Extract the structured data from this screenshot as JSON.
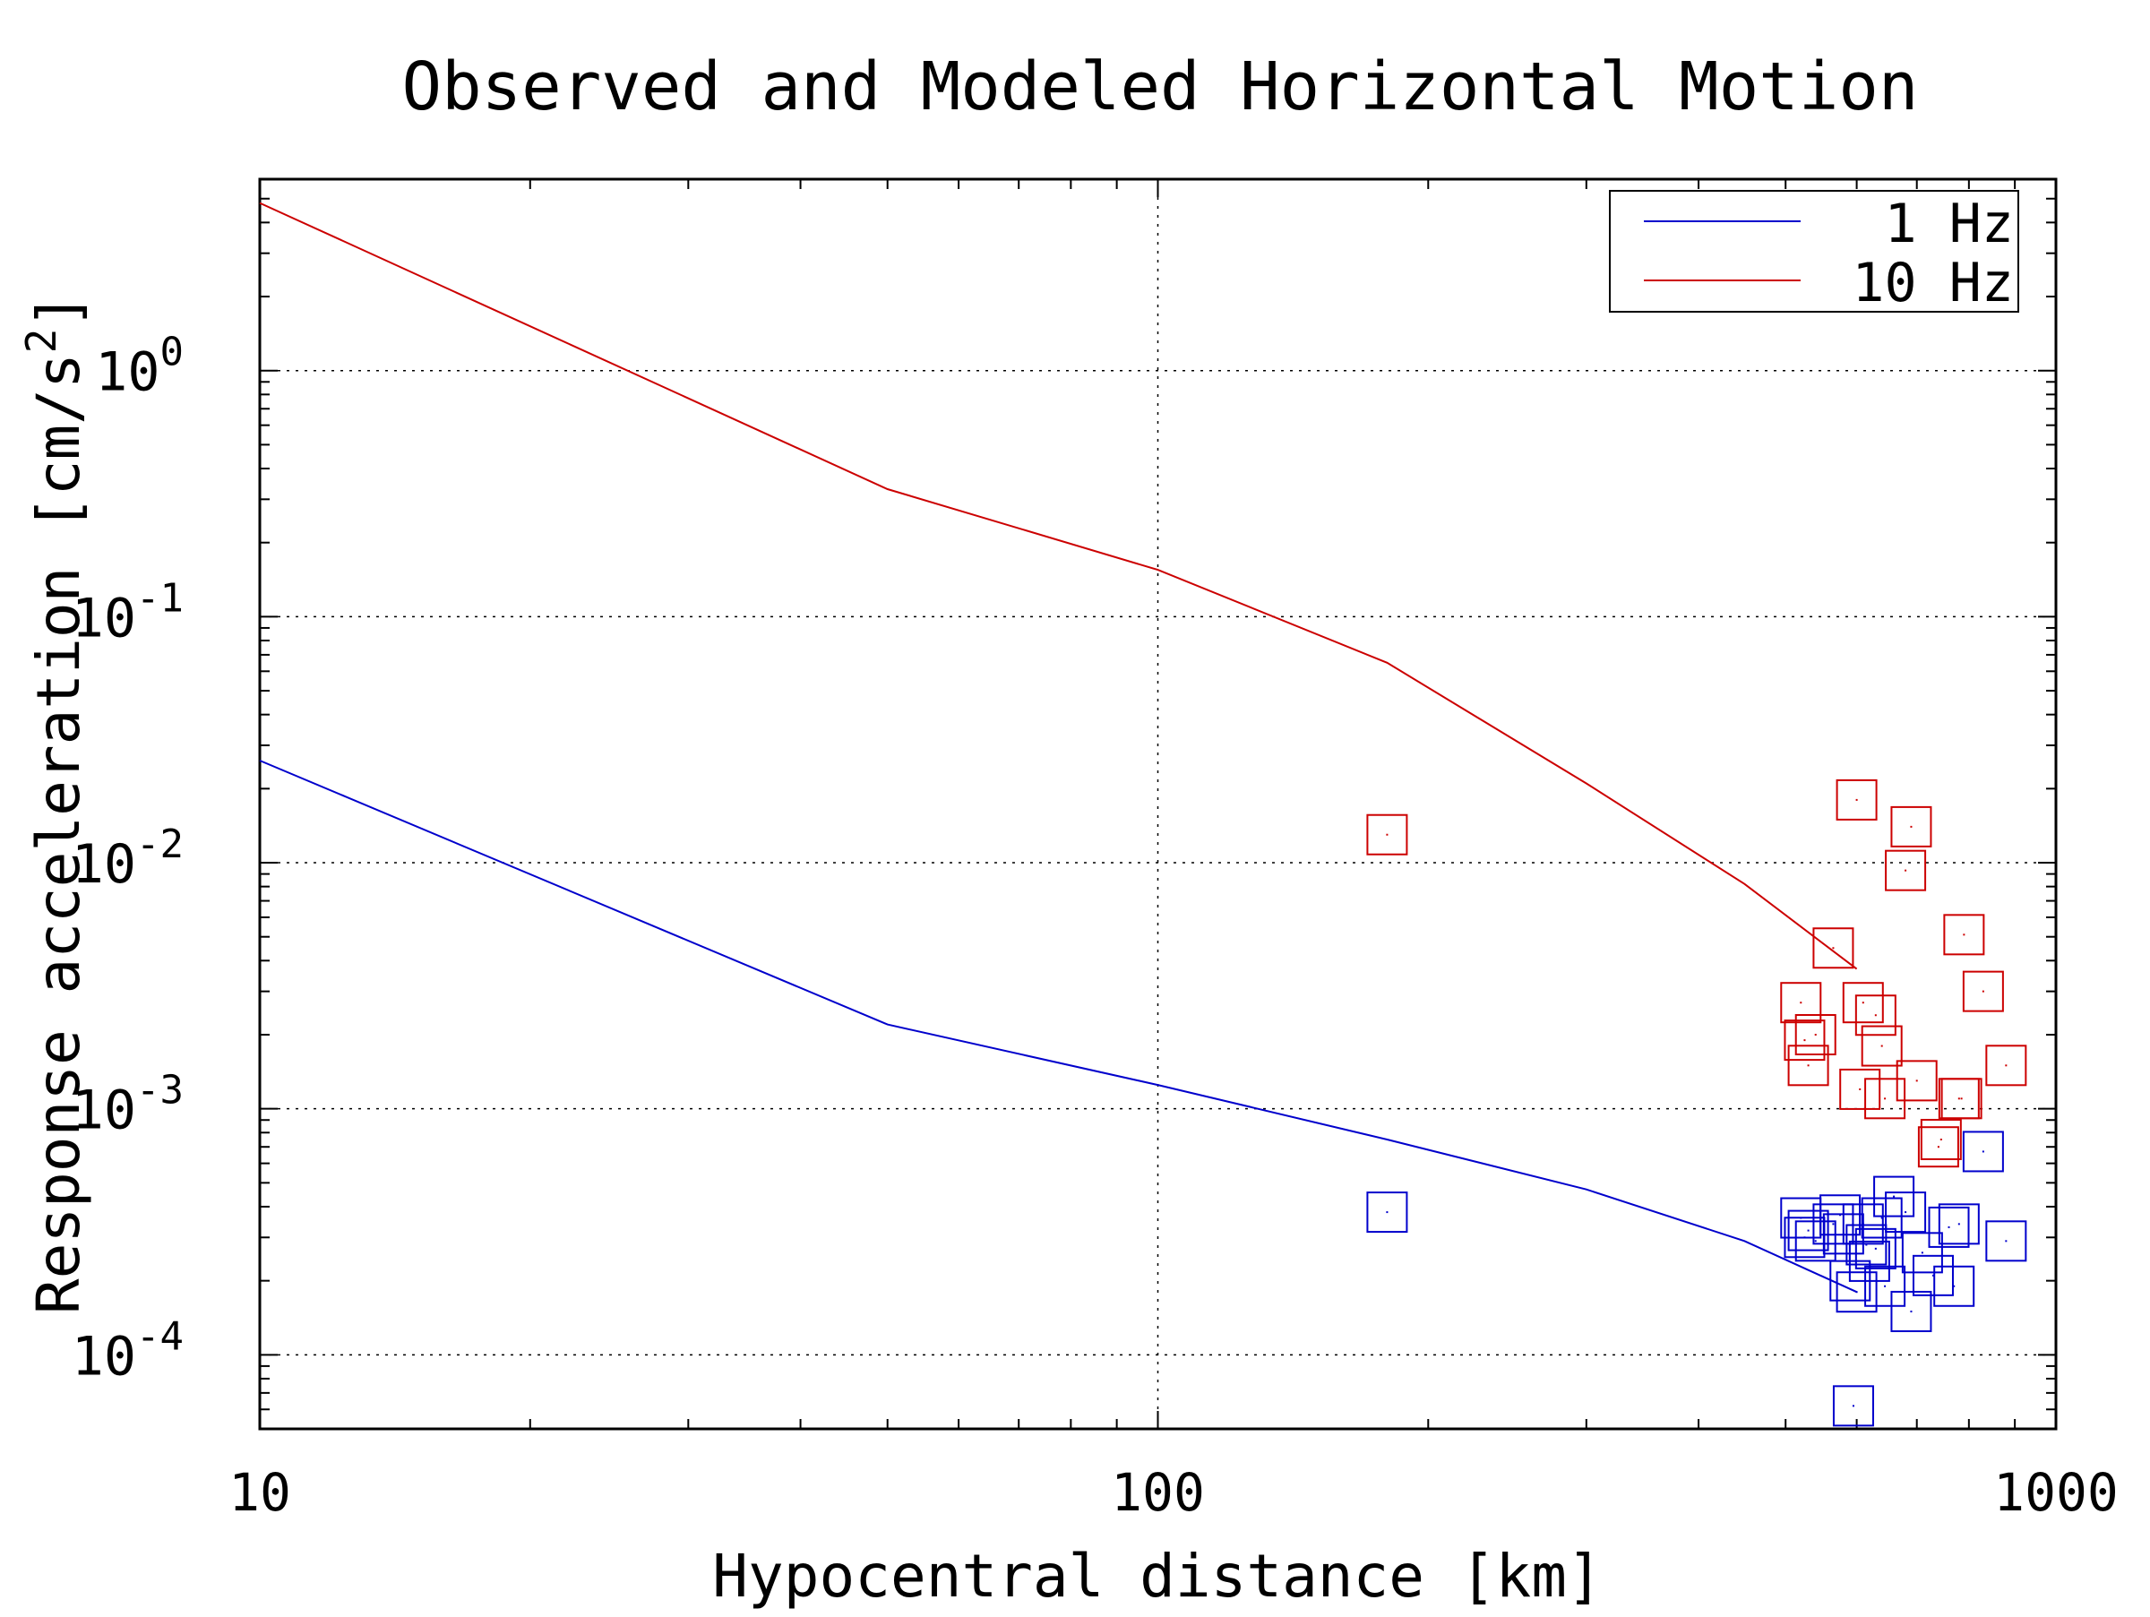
{
  "chart_data": {
    "type": "scatter",
    "title": "Observed and Modeled Horizontal Motion",
    "xlabel": "Hypocentral distance [km]",
    "ylabel_main": "Response acceleration [cm/s",
    "ylabel_sup": "2",
    "ylabel_close": "]",
    "xscale": "log",
    "yscale": "log",
    "xlim": [
      10,
      1000
    ],
    "ylim": [
      5e-05,
      6
    ],
    "xticks": [
      {
        "value": 10,
        "label": "10"
      },
      {
        "value": 100,
        "label": "100"
      },
      {
        "value": 1000,
        "label": "1000"
      }
    ],
    "yticks": [
      {
        "value": 1,
        "base": "10",
        "exp": "0"
      },
      {
        "value": 0.1,
        "base": "10",
        "exp": "-1"
      },
      {
        "value": 0.01,
        "base": "10",
        "exp": "-2"
      },
      {
        "value": 0.001,
        "base": "10",
        "exp": "-3"
      },
      {
        "value": 0.0001,
        "base": "10",
        "exp": "-4"
      }
    ],
    "grid": "dotted",
    "legend_position": "top-right",
    "series": [
      {
        "name": "1 Hz",
        "color": "#0000cc",
        "model": [
          [
            10,
            0.026
          ],
          [
            50,
            0.0022
          ],
          [
            100,
            0.00125
          ],
          [
            180,
            0.00075
          ],
          [
            300,
            0.00047
          ],
          [
            450,
            0.00029
          ],
          [
            600,
            0.00018
          ]
        ],
        "observed": [
          [
            180,
            0.00038
          ],
          [
            520,
            0.00036
          ],
          [
            525,
            0.0003
          ],
          [
            530,
            0.00032
          ],
          [
            540,
            0.00029
          ],
          [
            565,
            0.00034
          ],
          [
            575,
            0.00037
          ],
          [
            580,
            0.00031
          ],
          [
            590,
            0.0002
          ],
          [
            595,
            6.2e-05
          ],
          [
            600,
            0.00018
          ],
          [
            610,
            0.00034
          ],
          [
            615,
            0.00028
          ],
          [
            620,
            0.00024
          ],
          [
            630,
            0.00027
          ],
          [
            640,
            0.00036
          ],
          [
            645,
            0.00019
          ],
          [
            660,
            0.00044
          ],
          [
            680,
            0.00038
          ],
          [
            690,
            0.00015
          ],
          [
            710,
            0.00026
          ],
          [
            730,
            0.00021
          ],
          [
            760,
            0.00033
          ],
          [
            770,
            0.00019
          ],
          [
            780,
            0.00034
          ],
          [
            830,
            0.00067
          ],
          [
            880,
            0.00029
          ]
        ]
      },
      {
        "name": "10 Hz",
        "color": "#cc0000",
        "model": [
          [
            10,
            4.8
          ],
          [
            50,
            0.33
          ],
          [
            100,
            0.155
          ],
          [
            180,
            0.065
          ],
          [
            300,
            0.021
          ],
          [
            450,
            0.0082
          ],
          [
            600,
            0.0037
          ]
        ],
        "observed": [
          [
            180,
            0.013
          ],
          [
            520,
            0.0027
          ],
          [
            525,
            0.0019
          ],
          [
            530,
            0.0015
          ],
          [
            540,
            0.002
          ],
          [
            565,
            0.0045
          ],
          [
            600,
            0.018
          ],
          [
            605,
            0.0012
          ],
          [
            610,
            0.0027
          ],
          [
            630,
            0.0024
          ],
          [
            640,
            0.0018
          ],
          [
            645,
            0.0011
          ],
          [
            680,
            0.0093
          ],
          [
            690,
            0.014
          ],
          [
            700,
            0.0013
          ],
          [
            740,
            0.0007
          ],
          [
            745,
            0.00075
          ],
          [
            780,
            0.0011
          ],
          [
            785,
            0.0011
          ],
          [
            790,
            0.0051
          ],
          [
            830,
            0.003
          ],
          [
            880,
            0.0015
          ]
        ]
      }
    ]
  }
}
